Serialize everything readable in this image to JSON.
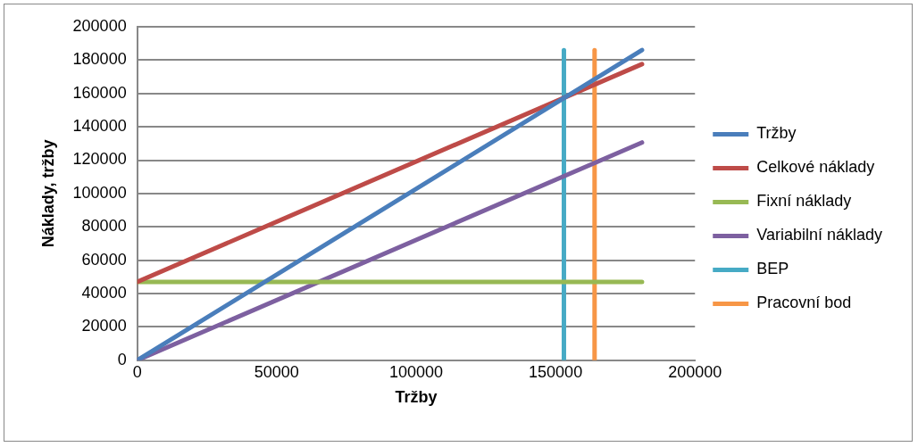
{
  "chart_data": {
    "type": "line",
    "xlabel": "Tržby",
    "ylabel": "Náklady, tržby",
    "xlim": [
      0,
      200000
    ],
    "xticks": [
      0,
      50000,
      100000,
      150000,
      200000
    ],
    "ylim": [
      0,
      200000
    ],
    "yticks": [
      0,
      20000,
      40000,
      60000,
      80000,
      100000,
      120000,
      140000,
      160000,
      180000,
      200000
    ],
    "grid": "y",
    "legend": "right",
    "marker": "none",
    "line_style": "solid",
    "series": [
      {
        "name": "Tržby",
        "color": "#4a7ebb",
        "x": [
          0,
          181000
        ],
        "values": [
          0,
          186000
        ]
      },
      {
        "name": "Celkové náklady",
        "color": "#be4b48",
        "x": [
          0,
          181000
        ],
        "values": [
          47000,
          177600
        ]
      },
      {
        "name": "Fixní náklady",
        "color": "#98b954",
        "x": [
          0,
          181000
        ],
        "values": [
          47000,
          47000
        ]
      },
      {
        "name": "Variabilní náklady",
        "color": "#7d60a0",
        "x": [
          0,
          181000
        ],
        "values": [
          0,
          130600
        ]
      },
      {
        "name": "BEP",
        "color": "#46aac5",
        "x": [
          153000,
          153000
        ],
        "values": [
          0,
          186000
        ]
      },
      {
        "name": "Pracovní bod",
        "color": "#f79646",
        "x": [
          164000,
          164000
        ],
        "values": [
          0,
          186000
        ]
      }
    ]
  }
}
